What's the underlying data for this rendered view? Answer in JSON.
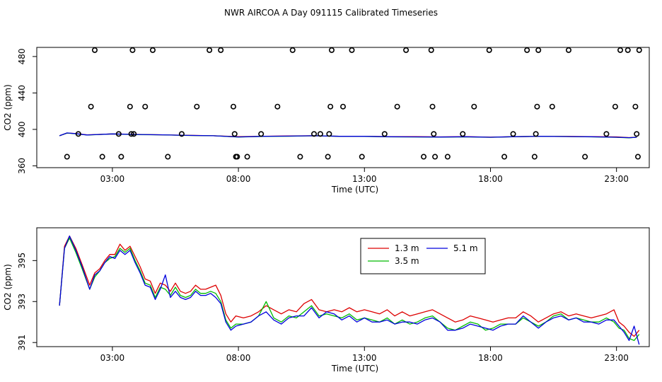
{
  "title": "NWR AIRCOA A  Day 091115  Calibrated Timeseries",
  "colors": {
    "series_1_3m": "#dd0000",
    "series_3_5m": "#00bb00",
    "series_5_1m": "#0000dd",
    "frame": "#000000",
    "background": "#ffffff"
  },
  "chart_data": [
    {
      "type": "scatter",
      "xlabel": "Time (UTC)",
      "ylabel": "CO2 (ppm)",
      "xlim": [
        0.0,
        24.3
      ],
      "ylim": [
        358,
        490
      ],
      "xticks": [
        {
          "value": 3,
          "label": "03:00"
        },
        {
          "value": 8,
          "label": "08:00"
        },
        {
          "value": 13,
          "label": "13:00"
        },
        {
          "value": 18,
          "label": "18:00"
        },
        {
          "value": 23,
          "label": "23:00"
        }
      ],
      "yticks": [
        {
          "value": 360,
          "label": "360"
        },
        {
          "value": 400,
          "label": "400"
        },
        {
          "value": 440,
          "label": "440"
        },
        {
          "value": 480,
          "label": "480"
        }
      ],
      "calibration_points": {
        "marker": "open-circle",
        "x": [
          1.2,
          1.65,
          2.15,
          2.3,
          2.6,
          3.25,
          3.35,
          3.7,
          3.75,
          3.8,
          3.85,
          4.3,
          4.6,
          5.2,
          5.75,
          6.35,
          6.85,
          7.3,
          7.8,
          7.85,
          7.9,
          7.95,
          8.35,
          8.9,
          9.55,
          10.15,
          10.45,
          11.0,
          11.25,
          11.55,
          11.6,
          11.65,
          11.7,
          12.15,
          12.5,
          12.9,
          13.8,
          14.3,
          14.65,
          15.35,
          15.65,
          15.7,
          15.75,
          15.8,
          16.3,
          16.9,
          17.35,
          17.95,
          18.55,
          18.9,
          19.45,
          19.75,
          19.8,
          19.85,
          19.9,
          20.45,
          21.1,
          21.75,
          22.6,
          22.95,
          23.15,
          23.45,
          23.75,
          23.8,
          23.85,
          23.9
        ],
        "y": [
          370,
          395,
          425,
          487,
          370,
          395,
          370,
          425,
          395,
          487,
          395,
          425,
          487,
          370,
          395,
          425,
          487,
          487,
          425,
          395,
          370,
          370,
          370,
          395,
          425,
          487,
          370,
          395,
          395,
          370,
          395,
          425,
          487,
          425,
          487,
          370,
          395,
          425,
          487,
          370,
          487,
          425,
          395,
          370,
          370,
          395,
          425,
          487,
          370,
          395,
          487,
          370,
          395,
          425,
          487,
          425,
          487,
          370,
          395,
          425,
          487,
          487,
          425,
          395,
          370,
          487
        ]
      },
      "series": [
        {
          "x": [
            0.9,
            1.2,
            1.5,
            2.0,
            3.0,
            4.0,
            5.0,
            6.0,
            7.0,
            8.0,
            9.0,
            10.0,
            11.0,
            12.0,
            13.0,
            14.0,
            15.0,
            16.0,
            17.0,
            18.0,
            19.0,
            20.0,
            21.0,
            22.0,
            23.0,
            23.5,
            23.8
          ],
          "y": [
            393,
            396,
            395.5,
            394,
            395,
            394.5,
            394,
            393.5,
            393,
            392,
            392.5,
            392.8,
            393,
            392.5,
            392.5,
            392,
            392,
            391.8,
            392,
            391.5,
            392,
            392.5,
            392.3,
            392,
            391.8,
            391,
            391.5
          ]
        },
        {
          "x": [
            0.9,
            1.2,
            1.5,
            2.0,
            3.0,
            4.0,
            5.0,
            6.0,
            7.0,
            8.0,
            9.0,
            10.0,
            11.0,
            12.0,
            13.0,
            14.0,
            15.0,
            16.0,
            17.0,
            18.0,
            19.0,
            20.0,
            21.0,
            22.0,
            23.0,
            23.5,
            23.8
          ],
          "y": [
            393,
            396,
            395.3,
            393.8,
            395,
            394.3,
            394,
            393.3,
            393,
            391.6,
            392.3,
            392.5,
            393,
            392.4,
            392.3,
            391.8,
            391.7,
            391.5,
            391.8,
            391.3,
            392,
            392.4,
            392.2,
            391.8,
            391.3,
            390.8,
            391.4
          ]
        },
        {
          "x": [
            0.9,
            1.2,
            1.5,
            2.0,
            3.0,
            4.0,
            5.0,
            6.0,
            7.0,
            8.0,
            9.0,
            10.0,
            11.0,
            12.0,
            13.0,
            14.0,
            15.0,
            16.0,
            17.0,
            18.0,
            19.0,
            20.0,
            21.0,
            22.0,
            23.0,
            23.5,
            23.8
          ],
          "y": [
            393,
            396.1,
            395.4,
            393.9,
            395,
            394.4,
            394,
            393.4,
            393,
            391.7,
            392.4,
            392.6,
            393,
            392.4,
            392.4,
            391.9,
            391.8,
            391.6,
            391.9,
            391.4,
            392,
            392.4,
            392.2,
            391.9,
            391.4,
            390.9,
            391.3
          ]
        }
      ]
    },
    {
      "type": "line",
      "xlabel": "Time (UTC)",
      "ylabel": "CO2 (ppm)",
      "xlim": [
        0.0,
        24.3
      ],
      "ylim": [
        390.8,
        396.6
      ],
      "xticks": [
        {
          "value": 3,
          "label": "03:00"
        },
        {
          "value": 8,
          "label": "08:00"
        },
        {
          "value": 13,
          "label": "13:00"
        },
        {
          "value": 18,
          "label": "18:00"
        },
        {
          "value": 23,
          "label": "23:00"
        }
      ],
      "yticks": [
        {
          "value": 391,
          "label": "391"
        },
        {
          "value": 393,
          "label": "393"
        },
        {
          "value": 395,
          "label": "395"
        }
      ],
      "legend": {
        "position": "top-right",
        "entries": [
          "1.3 m",
          "5.1 m",
          "3.5 m"
        ]
      },
      "series": [
        {
          "name": "1.3 m",
          "x": [
            0.9,
            1.1,
            1.3,
            1.55,
            1.8,
            2.1,
            2.3,
            2.5,
            2.7,
            2.9,
            3.1,
            3.3,
            3.5,
            3.7,
            3.9,
            4.1,
            4.3,
            4.5,
            4.7,
            4.9,
            5.1,
            5.3,
            5.5,
            5.7,
            5.9,
            6.1,
            6.3,
            6.5,
            6.7,
            6.9,
            7.1,
            7.3,
            7.5,
            7.7,
            7.9,
            8.2,
            8.5,
            8.8,
            9.1,
            9.4,
            9.7,
            10.0,
            10.3,
            10.6,
            10.9,
            11.2,
            11.5,
            11.8,
            12.1,
            12.4,
            12.7,
            13.0,
            13.3,
            13.6,
            13.9,
            14.2,
            14.5,
            14.8,
            15.1,
            15.4,
            15.7,
            16.0,
            16.3,
            16.6,
            16.9,
            17.2,
            17.5,
            17.8,
            18.1,
            18.4,
            18.7,
            19.0,
            19.3,
            19.6,
            19.9,
            20.2,
            20.5,
            20.8,
            21.1,
            21.4,
            21.7,
            22.0,
            22.3,
            22.6,
            22.9,
            23.1,
            23.3,
            23.5,
            23.7,
            23.9
          ],
          "y": [
            392.8,
            395.7,
            396.2,
            395.6,
            394.8,
            393.8,
            394.4,
            394.6,
            395.0,
            395.3,
            395.3,
            395.8,
            395.5,
            395.7,
            395.2,
            394.7,
            394.1,
            394.0,
            393.4,
            393.9,
            393.8,
            393.5,
            393.9,
            393.5,
            393.4,
            393.5,
            393.8,
            393.6,
            393.6,
            393.7,
            393.8,
            393.3,
            392.4,
            392.0,
            392.3,
            392.2,
            392.3,
            392.5,
            392.8,
            392.6,
            392.4,
            392.6,
            392.5,
            392.9,
            393.1,
            392.6,
            392.5,
            392.6,
            392.5,
            392.7,
            392.5,
            392.6,
            392.5,
            392.4,
            392.6,
            392.3,
            392.5,
            392.3,
            392.4,
            392.5,
            392.6,
            392.4,
            392.2,
            392.0,
            392.1,
            392.3,
            392.2,
            392.1,
            392.0,
            392.1,
            392.2,
            392.2,
            392.5,
            392.3,
            392.0,
            392.2,
            392.4,
            392.5,
            392.3,
            392.4,
            392.3,
            392.2,
            392.3,
            392.4,
            392.6,
            392.0,
            391.8,
            391.5,
            391.3,
            391.6
          ]
        },
        {
          "name": "3.5 m",
          "x": [
            0.9,
            1.1,
            1.3,
            1.55,
            1.8,
            2.1,
            2.3,
            2.5,
            2.7,
            2.9,
            3.1,
            3.3,
            3.5,
            3.7,
            3.9,
            4.1,
            4.3,
            4.5,
            4.7,
            4.9,
            5.1,
            5.3,
            5.5,
            5.7,
            5.9,
            6.1,
            6.3,
            6.5,
            6.7,
            6.9,
            7.1,
            7.3,
            7.5,
            7.7,
            7.9,
            8.2,
            8.5,
            8.8,
            9.1,
            9.4,
            9.7,
            10.0,
            10.3,
            10.6,
            10.9,
            11.2,
            11.5,
            11.8,
            12.1,
            12.4,
            12.7,
            13.0,
            13.3,
            13.6,
            13.9,
            14.2,
            14.5,
            14.8,
            15.1,
            15.4,
            15.7,
            16.0,
            16.3,
            16.6,
            16.9,
            17.2,
            17.5,
            17.8,
            18.1,
            18.4,
            18.7,
            19.0,
            19.3,
            19.6,
            19.9,
            20.2,
            20.5,
            20.8,
            21.1,
            21.4,
            21.7,
            22.0,
            22.3,
            22.6,
            22.9,
            23.1,
            23.3,
            23.5,
            23.7,
            23.9
          ],
          "y": [
            392.8,
            395.6,
            396.1,
            395.4,
            394.6,
            393.6,
            394.2,
            394.5,
            394.9,
            395.1,
            395.2,
            395.6,
            395.4,
            395.6,
            395.0,
            394.5,
            393.9,
            393.8,
            393.2,
            393.7,
            393.6,
            393.3,
            393.7,
            393.3,
            393.2,
            393.3,
            393.6,
            393.4,
            393.4,
            393.5,
            393.4,
            393.0,
            392.1,
            391.7,
            391.9,
            391.9,
            392.0,
            392.3,
            393.0,
            392.2,
            392.0,
            392.3,
            392.2,
            392.5,
            392.8,
            392.3,
            392.4,
            392.3,
            392.2,
            392.4,
            392.1,
            392.2,
            392.1,
            392.0,
            392.2,
            391.9,
            392.1,
            391.9,
            392.0,
            392.2,
            392.3,
            392.0,
            391.7,
            391.6,
            391.8,
            392.0,
            391.9,
            391.6,
            391.7,
            391.9,
            391.9,
            391.9,
            392.2,
            392.0,
            391.8,
            392.0,
            392.3,
            392.4,
            392.1,
            392.2,
            392.1,
            392.0,
            392.0,
            392.2,
            392.0,
            391.7,
            391.6,
            391.2,
            391.1,
            391.4
          ]
        },
        {
          "name": "5.1 m",
          "x": [
            0.9,
            1.1,
            1.3,
            1.55,
            1.8,
            2.1,
            2.3,
            2.5,
            2.7,
            2.9,
            3.1,
            3.3,
            3.5,
            3.7,
            3.9,
            4.1,
            4.3,
            4.5,
            4.7,
            4.9,
            5.1,
            5.3,
            5.5,
            5.7,
            5.9,
            6.1,
            6.3,
            6.5,
            6.7,
            6.9,
            7.1,
            7.3,
            7.5,
            7.7,
            7.9,
            8.2,
            8.5,
            8.8,
            9.1,
            9.4,
            9.7,
            10.0,
            10.3,
            10.6,
            10.9,
            11.2,
            11.5,
            11.8,
            12.1,
            12.4,
            12.7,
            13.0,
            13.3,
            13.6,
            13.9,
            14.2,
            14.5,
            14.8,
            15.1,
            15.4,
            15.7,
            16.0,
            16.3,
            16.6,
            16.9,
            17.2,
            17.5,
            17.8,
            18.1,
            18.4,
            18.7,
            19.0,
            19.3,
            19.6,
            19.9,
            20.2,
            20.5,
            20.8,
            21.1,
            21.4,
            21.7,
            22.0,
            22.3,
            22.6,
            22.9,
            23.1,
            23.3,
            23.5,
            23.7,
            23.9
          ],
          "y": [
            392.8,
            395.6,
            396.2,
            395.5,
            394.7,
            393.6,
            394.3,
            394.5,
            394.9,
            395.2,
            395.1,
            395.5,
            395.3,
            395.5,
            394.9,
            394.4,
            393.8,
            393.7,
            393.1,
            393.6,
            394.3,
            393.2,
            393.5,
            393.2,
            393.1,
            393.2,
            393.5,
            393.3,
            393.3,
            393.4,
            393.2,
            392.9,
            392.0,
            391.6,
            391.8,
            391.9,
            392.0,
            392.3,
            392.5,
            392.1,
            391.9,
            392.2,
            392.3,
            392.3,
            392.7,
            392.2,
            392.5,
            392.4,
            392.1,
            392.3,
            392.0,
            392.2,
            392.0,
            392.0,
            392.1,
            391.9,
            392.0,
            392.0,
            391.9,
            392.1,
            392.2,
            392.0,
            391.6,
            391.6,
            391.7,
            391.9,
            391.8,
            391.7,
            391.6,
            391.8,
            391.9,
            391.9,
            392.3,
            392.0,
            391.7,
            392.0,
            392.2,
            392.3,
            392.1,
            392.2,
            392.0,
            392.0,
            391.9,
            392.1,
            392.1,
            391.8,
            391.5,
            391.1,
            391.8,
            390.9
          ]
        }
      ]
    }
  ]
}
